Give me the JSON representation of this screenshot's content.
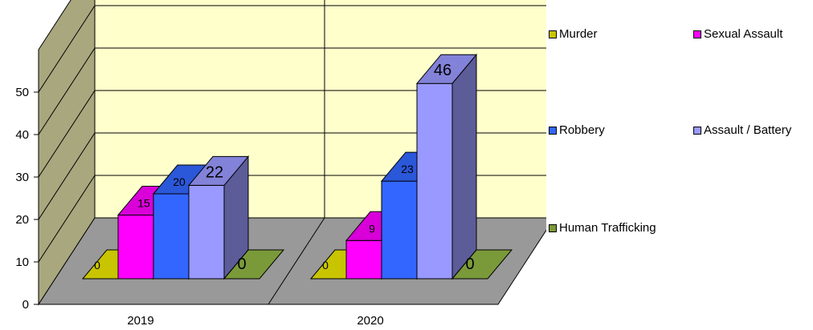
{
  "chart_data": {
    "type": "bar",
    "style": "3d-clustered-column",
    "categories": [
      "2019",
      "2020"
    ],
    "series": [
      {
        "name": "Murder",
        "values": [
          0,
          0
        ],
        "color": "#c8c400"
      },
      {
        "name": "Sexual Assault",
        "values": [
          15,
          9
        ],
        "color": "#ff00ff"
      },
      {
        "name": "Robbery",
        "values": [
          20,
          23
        ],
        "color": "#3366ff"
      },
      {
        "name": "Assault / Battery",
        "values": [
          22,
          46
        ],
        "color": "#9999ff"
      },
      {
        "name": "Human Trafficking",
        "values": [
          0,
          0
        ],
        "color": "#7a9a3a"
      }
    ],
    "y_ticks": [
      "0",
      "10",
      "20",
      "30",
      "40",
      "50"
    ],
    "ylim": [
      0,
      60
    ],
    "grid": true,
    "legend_position": "right",
    "wall_color": "#ffffcc",
    "side_wall_color": "#a9a77e",
    "floor_color": "#999999"
  }
}
